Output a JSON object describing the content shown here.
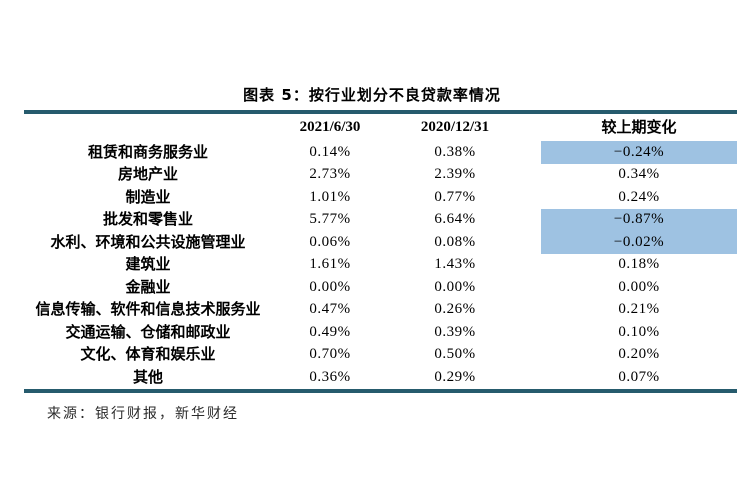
{
  "figure": {
    "title": "图表 5：按行业划分不良贷款率情况",
    "source": "来源：银行财报，新华财经"
  },
  "colors": {
    "rule_teal": "#265b6d",
    "highlight_blue": "#9ec2e2",
    "background": "#ffffff",
    "text": "#000000"
  },
  "chart_data": {
    "type": "table",
    "title": "图表 5：按行业划分不良贷款率情况",
    "columns": [
      "2021/6/30",
      "2020/12/31",
      "较上期变化"
    ],
    "rows": [
      {
        "label": "租赁和商务服务业",
        "values": [
          "0.14%",
          "0.38%",
          "−0.24%"
        ],
        "highlighted": true
      },
      {
        "label": "房地产业",
        "values": [
          "2.73%",
          "2.39%",
          "0.34%"
        ],
        "highlighted": false
      },
      {
        "label": "制造业",
        "values": [
          "1.01%",
          "0.77%",
          "0.24%"
        ],
        "highlighted": false
      },
      {
        "label": "批发和零售业",
        "values": [
          "5.77%",
          "6.64%",
          "−0.87%"
        ],
        "highlighted": true
      },
      {
        "label": "水利、环境和公共设施管理业",
        "values": [
          "0.06%",
          "0.08%",
          "−0.02%"
        ],
        "highlighted": true
      },
      {
        "label": "建筑业",
        "values": [
          "1.61%",
          "1.43%",
          "0.18%"
        ],
        "highlighted": false
      },
      {
        "label": "金融业",
        "values": [
          "0.00%",
          "0.00%",
          "0.00%"
        ],
        "highlighted": false
      },
      {
        "label": "信息传输、软件和信息技术服务业",
        "values": [
          "0.47%",
          "0.26%",
          "0.21%"
        ],
        "highlighted": false
      },
      {
        "label": "交通运输、仓储和邮政业",
        "values": [
          "0.49%",
          "0.39%",
          "0.10%"
        ],
        "highlighted": false
      },
      {
        "label": "文化、体育和娱乐业",
        "values": [
          "0.70%",
          "0.50%",
          "0.20%"
        ],
        "highlighted": false
      },
      {
        "label": "其他",
        "values": [
          "0.36%",
          "0.29%",
          "0.07%"
        ],
        "highlighted": false
      }
    ],
    "source_note": "来源：银行财报，新华财经",
    "layout": {
      "highlight_column": "较上期变化",
      "header_bold": true,
      "rules": "top-and-bottom"
    }
  }
}
